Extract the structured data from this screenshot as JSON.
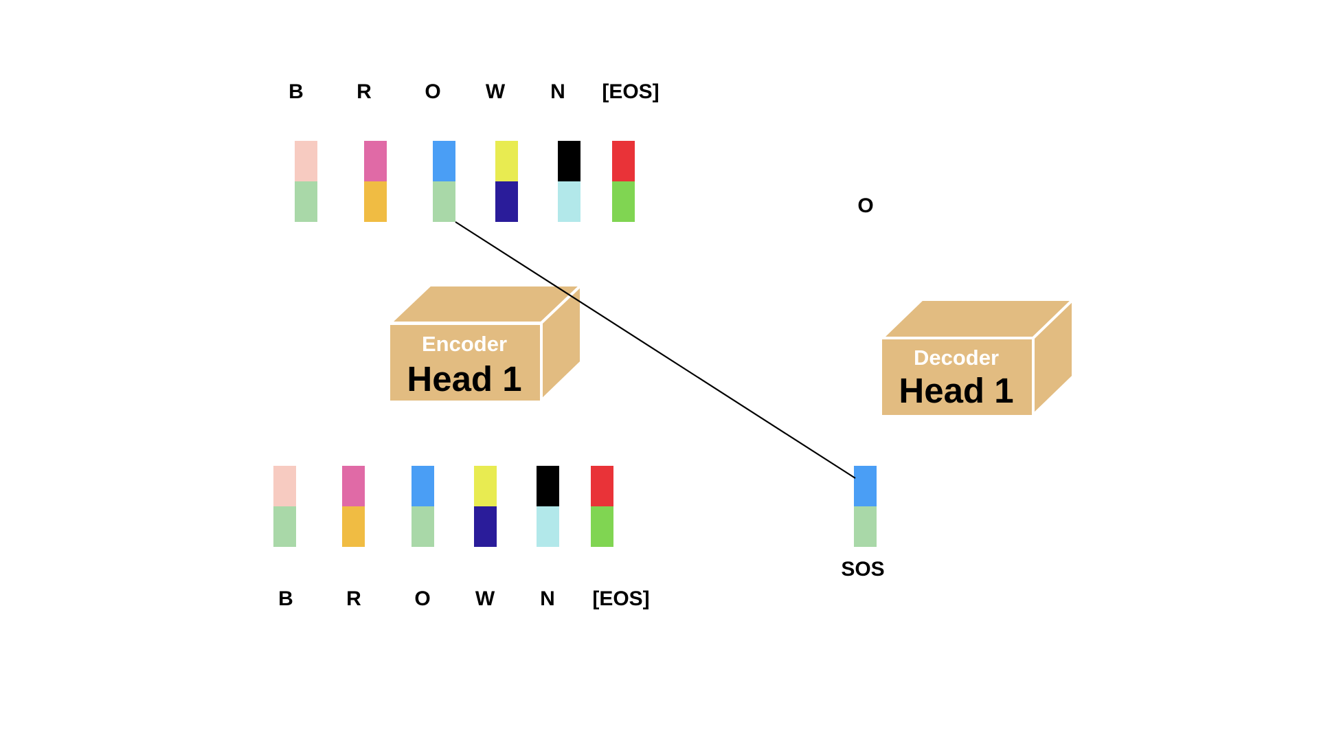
{
  "top_tokens": [
    "B",
    "R",
    "O",
    "W",
    "N",
    "[EOS]"
  ],
  "bottom_tokens": [
    "B",
    "R",
    "O",
    "W",
    "N",
    "[EOS]"
  ],
  "vector_colors": [
    {
      "top": "#F7CBC1",
      "bottom": "#A9D8A8"
    },
    {
      "top": "#E06AA6",
      "bottom": "#F0BC43"
    },
    {
      "top": "#4A9EF5",
      "bottom": "#A9D8A8"
    },
    {
      "top": "#E8EB51",
      "bottom": "#2A1C9A"
    },
    {
      "top": "#000000",
      "bottom": "#B2E8EA"
    },
    {
      "top": "#E93338",
      "bottom": "#80D552"
    }
  ],
  "encoder": {
    "label_top": "Encoder",
    "label_main": "Head 1"
  },
  "decoder": {
    "label_top": "Decoder",
    "label_main": "Head 1"
  },
  "decoder_input": {
    "label": "SOS",
    "top": "#4A9EF5",
    "bottom": "#A9D8A8"
  },
  "decoder_output": {
    "label": "O"
  },
  "colors": {
    "box_fill": "#E2BC81",
    "box_edge": "#FFFFFF",
    "line": "#000000"
  }
}
